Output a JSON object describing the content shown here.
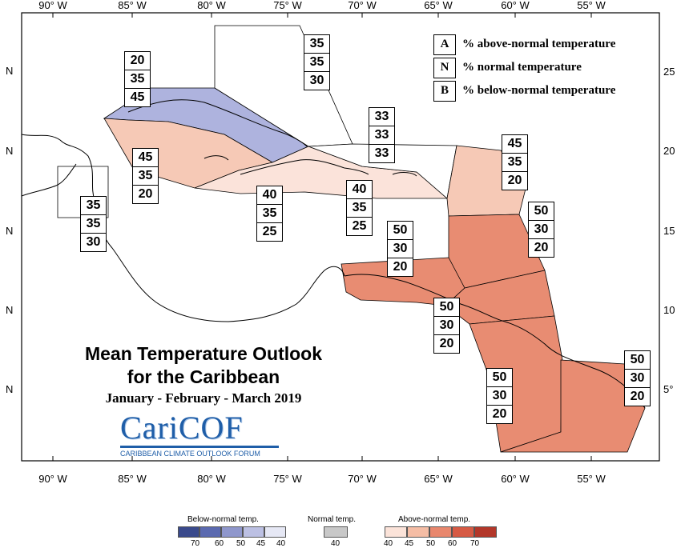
{
  "lon_labels": [
    "90° W",
    "85° W",
    "80° W",
    "75° W",
    "70° W",
    "65° W",
    "60° W",
    "55° W"
  ],
  "lat_labels": [
    "N",
    "N",
    "N",
    "N",
    "N"
  ],
  "lat_labels_right": [
    "25",
    "20",
    "15",
    "10",
    "5°"
  ],
  "legend": {
    "rows": [
      {
        "letter": "A",
        "text": "% above-normal temperature"
      },
      {
        "letter": "N",
        "text": "% normal temperature"
      },
      {
        "letter": "B",
        "text": "% below-normal temperature"
      }
    ]
  },
  "boxes": [
    {
      "values": [
        "20",
        "35",
        "45"
      ]
    },
    {
      "values": [
        "35",
        "35",
        "30"
      ]
    },
    {
      "values": [
        "33",
        "33",
        "33"
      ]
    },
    {
      "values": [
        "45",
        "35",
        "20"
      ]
    },
    {
      "values": [
        "45",
        "35",
        "20"
      ]
    },
    {
      "values": [
        "40",
        "35",
        "25"
      ]
    },
    {
      "values": [
        "40",
        "35",
        "25"
      ]
    },
    {
      "values": [
        "35",
        "35",
        "30"
      ]
    },
    {
      "values": [
        "50",
        "30",
        "20"
      ]
    },
    {
      "values": [
        "50",
        "30",
        "20"
      ]
    },
    {
      "values": [
        "50",
        "30",
        "20"
      ]
    },
    {
      "values": [
        "50",
        "30",
        "20"
      ]
    },
    {
      "values": [
        "50",
        "30",
        "20"
      ]
    }
  ],
  "title": {
    "line1": "Mean Temperature Outlook",
    "line2": "for the Caribbean",
    "period": "January - February - March 2019"
  },
  "logo": {
    "text": "CariCOF",
    "tagline": "CARIBBEAN CLIMATE OUTLOOK FORUM"
  },
  "scale": {
    "below_caption": "Below-normal temp.",
    "normal_caption": "Normal temp.",
    "above_caption": "Above-normal temp.",
    "below_ticks": [
      "70",
      "60",
      "50",
      "45",
      "40"
    ],
    "normal_ticks": [
      "40"
    ],
    "above_ticks": [
      "40",
      "45",
      "50",
      "60",
      "70"
    ],
    "below_colors": [
      "#3a4a8c",
      "#5b6ab0",
      "#8f97cc",
      "#bcc0e3",
      "#e6e8f5"
    ],
    "normal_color": "#c8c8c8",
    "above_colors": [
      "#fbe3d9",
      "#f5bda5",
      "#e8876d",
      "#d65a44",
      "#b3372a"
    ]
  },
  "colors": {
    "below_45": "#aeb3de",
    "above_45": "#f6c9b6",
    "above_40": "#fbe3da",
    "above_50": "#e88c72",
    "normal_33": "#ffffff"
  }
}
